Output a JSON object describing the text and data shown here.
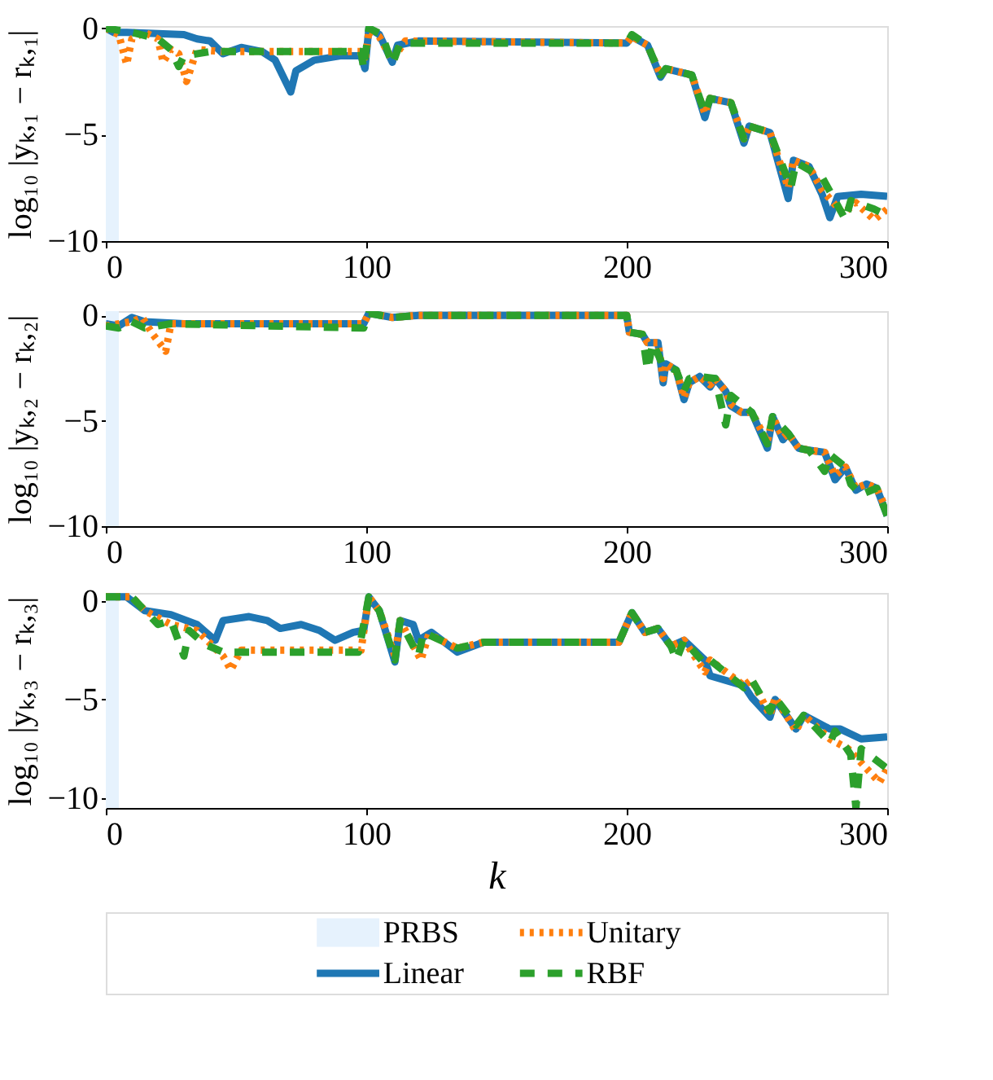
{
  "chart_data": [
    {
      "type": "line",
      "ylabel": "log₁₀ |yₖ,₁ − rₖ,₁|",
      "xlim": [
        0,
        300
      ],
      "xticks": [
        0,
        100,
        200,
        300
      ],
      "ylim": [
        -10,
        0.1
      ],
      "yticks": [
        0,
        -5,
        -10
      ],
      "grid": false,
      "legend": "bottom",
      "bands": [
        {
          "axis": "x",
          "from": 0,
          "to": 5,
          "label": "PRBS",
          "color": "#e6f2fd"
        }
      ],
      "series": [
        {
          "name": "Linear",
          "color": "#1f77b4",
          "line_style": "solid",
          "x": [
            0,
            3,
            8,
            30,
            35,
            40,
            45,
            52,
            60,
            65,
            71,
            73,
            80,
            90,
            98,
            99.5,
            101,
            105,
            110,
            112,
            120,
            200,
            202,
            208,
            213,
            215,
            225,
            230,
            232,
            240,
            245,
            247,
            255,
            262,
            264,
            270,
            275,
            278,
            281,
            290,
            300
          ],
          "values": [
            0,
            -0.2,
            -0.2,
            -0.3,
            -0.5,
            -0.6,
            -1.2,
            -0.9,
            -1.1,
            -1.5,
            -3,
            -2,
            -1.5,
            -1.3,
            -1.3,
            -1.9,
            0,
            -0.3,
            -1.6,
            -0.8,
            -0.6,
            -0.7,
            -0.4,
            -0.8,
            -2.3,
            -1.9,
            -2.2,
            -4.2,
            -3.3,
            -3.5,
            -5.4,
            -4.6,
            -4.9,
            -8,
            -6.2,
            -6.5,
            -7.8,
            -8.9,
            -7.9,
            -7.8,
            -7.9
          ]
        },
        {
          "name": "Unitary",
          "color": "#ff7f0e",
          "line_style": "dotted",
          "x": [
            0,
            5,
            8,
            10,
            15,
            20,
            22,
            25,
            28,
            31,
            35,
            45,
            98,
            99.5,
            101,
            105,
            110,
            115,
            200,
            202,
            208,
            213,
            215,
            225,
            230,
            232,
            240,
            245,
            247,
            255,
            262,
            264,
            270,
            275,
            283,
            288,
            295,
            300
          ],
          "values": [
            0,
            -0.3,
            -1.7,
            -0.5,
            -0.2,
            -0.5,
            -1.6,
            -1.0,
            -1.2,
            -2.5,
            -1.0,
            -1.1,
            -1.1,
            -1.6,
            -0.1,
            -0.4,
            -1.5,
            -0.6,
            -0.7,
            -0.4,
            -0.8,
            -2.2,
            -1.9,
            -2.2,
            -4.0,
            -3.3,
            -3.5,
            -5.2,
            -4.6,
            -4.9,
            -7.5,
            -6.2,
            -6.5,
            -7.6,
            -8.7,
            -8.2,
            -9,
            -8.5
          ]
        },
        {
          "name": "RBF",
          "color": "#2ca02c",
          "line_style": "dashed",
          "x": [
            0,
            10,
            20,
            25,
            28,
            30,
            40,
            98,
            99,
            101,
            106,
            110,
            113,
            200,
            202,
            208,
            213,
            215,
            225,
            230,
            232,
            240,
            245,
            247,
            255,
            263,
            265,
            275,
            284,
            286,
            295,
            300
          ],
          "values": [
            0,
            -0.2,
            -0.5,
            -1.0,
            -1.8,
            -1.3,
            -1.1,
            -1.1,
            -1.9,
            0,
            -0.3,
            -1.7,
            -0.7,
            -0.7,
            -0.3,
            -0.8,
            -2.2,
            -1.9,
            -2.2,
            -4.0,
            -3.3,
            -3.5,
            -5.2,
            -4.6,
            -4.9,
            -7.5,
            -6.3,
            -7.0,
            -9,
            -8.1,
            -8.5,
            -8.8
          ]
        }
      ]
    },
    {
      "type": "line",
      "ylabel": "log₁₀ |yₖ,₂ − rₖ,₂|",
      "xlim": [
        0,
        300
      ],
      "xticks": [
        0,
        100,
        200,
        300
      ],
      "ylim": [
        -10,
        0.2
      ],
      "yticks": [
        0,
        -5,
        -10
      ],
      "grid": false,
      "bands": [
        {
          "axis": "x",
          "from": 0,
          "to": 5,
          "color": "#e6f2fd"
        }
      ],
      "series": [
        {
          "color": "#1f77b4",
          "line_style": "solid",
          "x": [
            0,
            5,
            10,
            15,
            30,
            99,
            101,
            110,
            120,
            200,
            201,
            206,
            208,
            212,
            214,
            215,
            219,
            222,
            224,
            228,
            232,
            234,
            238,
            240,
            244,
            248,
            254,
            256,
            260,
            262,
            266,
            270,
            276,
            280,
            284,
            288,
            292,
            296,
            300
          ],
          "values": [
            -0.4,
            -0.5,
            -0.1,
            -0.3,
            -0.4,
            -0.4,
            0.1,
            -0.1,
            0,
            0,
            -0.8,
            -0.9,
            -1.3,
            -1.3,
            -3.2,
            -2.3,
            -2.6,
            -4.0,
            -3.2,
            -2.9,
            -3.4,
            -3.0,
            -3.6,
            -4.3,
            -4.6,
            -4.6,
            -6.3,
            -4.8,
            -5.9,
            -5.6,
            -6.3,
            -6.4,
            -6.5,
            -7.8,
            -7.2,
            -8.3,
            -8.0,
            -8.2,
            -9.5
          ]
        },
        {
          "color": "#ff7f0e",
          "line_style": "dotted",
          "x": [
            0,
            10,
            14,
            18,
            23,
            25,
            99,
            101,
            110,
            120,
            200,
            201,
            206,
            208,
            212,
            214,
            215,
            219,
            222,
            224,
            228,
            232,
            234,
            238,
            240,
            244,
            248,
            254,
            256,
            260,
            262,
            266,
            270,
            276,
            280,
            284,
            288,
            292,
            296,
            300
          ],
          "values": [
            -0.5,
            -0.3,
            -0.1,
            -0.9,
            -1.7,
            -0.4,
            -0.4,
            0.1,
            -0.1,
            0,
            0,
            -0.8,
            -0.9,
            -1.3,
            -1.3,
            -3.0,
            -2.3,
            -2.6,
            -3.9,
            -3.2,
            -2.9,
            -3.3,
            -3.0,
            -3.6,
            -4.2,
            -4.6,
            -4.6,
            -6.0,
            -4.8,
            -5.8,
            -5.6,
            -6.3,
            -6.4,
            -6.5,
            -7.6,
            -7.2,
            -8.2,
            -8.0,
            -8.2,
            -9.3
          ]
        },
        {
          "color": "#2ca02c",
          "line_style": "dashed",
          "x": [
            0,
            5,
            10,
            15,
            25,
            99,
            101,
            110,
            120,
            200,
            201,
            206,
            208,
            210,
            214,
            219,
            222,
            224,
            228,
            234,
            238,
            240,
            248,
            254,
            256,
            262,
            266,
            270,
            276,
            278,
            284,
            286,
            290,
            296,
            300
          ],
          "values": [
            -0.5,
            -0.6,
            -0.3,
            -0.6,
            -0.4,
            -0.6,
            0.1,
            -0.1,
            0,
            0,
            -0.8,
            -0.9,
            -2.6,
            -1.3,
            -2.4,
            -2.6,
            -3.6,
            -3.0,
            -2.9,
            -3.0,
            -5.2,
            -3.8,
            -4.6,
            -6.1,
            -4.8,
            -5.6,
            -6.3,
            -6.4,
            -7.4,
            -6.6,
            -7.2,
            -8.0,
            -8.5,
            -8.2,
            -9.5
          ]
        }
      ]
    },
    {
      "type": "line",
      "xlabel": "k",
      "ylabel": "log₁₀ |yₖ,₃ − rₖ,₃|",
      "xlim": [
        0,
        300
      ],
      "xticks": [
        0,
        100,
        200,
        300
      ],
      "ylim": [
        -10.5,
        0.4
      ],
      "yticks": [
        0,
        -5,
        -10
      ],
      "grid": false,
      "bands": [
        {
          "axis": "x",
          "from": 0,
          "to": 5,
          "color": "#e6f2fd"
        }
      ],
      "series": [
        {
          "color": "#1f77b4",
          "line_style": "solid",
          "x": [
            0,
            8,
            15,
            25,
            35,
            42,
            45,
            55,
            62,
            67,
            75,
            82,
            88,
            95,
            99,
            101,
            105,
            111,
            113,
            118,
            120,
            125,
            135,
            145,
            197,
            202,
            207,
            212,
            217,
            222,
            230,
            232,
            245,
            248,
            255,
            257,
            265,
            268,
            278,
            282,
            290,
            300
          ],
          "values": [
            0.2,
            0.2,
            -0.5,
            -0.7,
            -1.2,
            -2,
            -1.0,
            -0.8,
            -1.0,
            -1.4,
            -1.2,
            -1.5,
            -2.0,
            -1.6,
            -1.5,
            0.2,
            -0.5,
            -3.1,
            -1.0,
            -1.2,
            -2.0,
            -1.6,
            -2.6,
            -2.1,
            -2.1,
            -0.6,
            -1.6,
            -1.4,
            -2.3,
            -2.0,
            -3,
            -3.8,
            -4.3,
            -4.9,
            -5.9,
            -5.0,
            -6.5,
            -5.8,
            -6.5,
            -6.5,
            -7.0,
            -6.9
          ]
        },
        {
          "color": "#ff7f0e",
          "line_style": "dotted",
          "x": [
            0,
            10,
            15,
            25,
            35,
            45,
            48,
            52,
            98,
            101,
            105,
            111,
            113,
            121,
            124,
            135,
            145,
            197,
            202,
            207,
            212,
            217,
            222,
            230,
            232,
            245,
            248,
            255,
            257,
            265,
            268,
            278,
            285,
            297,
            300
          ],
          "values": [
            0.2,
            0.2,
            -0.5,
            -1.2,
            -1.5,
            -2.8,
            -3.5,
            -2.5,
            -2.5,
            0.2,
            -0.5,
            -2.8,
            -1.0,
            -3.0,
            -1.7,
            -2.4,
            -2.1,
            -2.1,
            -0.6,
            -1.6,
            -1.4,
            -2.3,
            -2.0,
            -3.6,
            -3.0,
            -4.3,
            -4.0,
            -5.8,
            -4.9,
            -6.6,
            -5.8,
            -7.0,
            -7.5,
            -9.2,
            -8.5
          ]
        },
        {
          "color": "#2ca02c",
          "line_style": "dashed",
          "x": [
            0,
            10,
            20,
            25,
            30,
            32,
            38,
            45,
            97,
            101,
            105,
            111,
            113,
            120,
            122,
            135,
            145,
            197,
            202,
            207,
            212,
            217,
            219,
            222,
            230,
            232,
            245,
            248,
            255,
            257,
            265,
            268,
            278,
            280,
            286,
            288,
            290,
            300
          ],
          "values": [
            0.2,
            0.2,
            -1.2,
            -1.0,
            -2.8,
            -1.5,
            -2.2,
            -2.6,
            -2.6,
            0.2,
            -0.5,
            -3.0,
            -1.0,
            -2.8,
            -1.6,
            -2.4,
            -2.1,
            -2.1,
            -0.6,
            -1.6,
            -1.4,
            -2.3,
            -3.0,
            -2.0,
            -3.2,
            -3.0,
            -4.4,
            -4.0,
            -5.6,
            -4.9,
            -6.3,
            -5.8,
            -7.2,
            -6.6,
            -7.8,
            -10.5,
            -7.5,
            -8.5
          ]
        }
      ]
    }
  ]
}
